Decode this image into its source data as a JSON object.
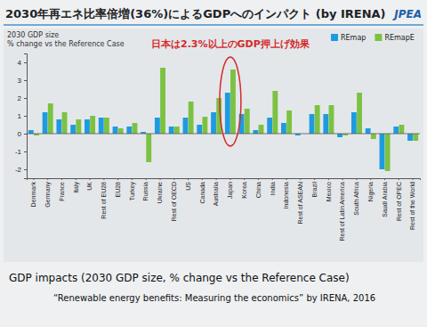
{
  "chart_data": {
    "type": "bar",
    "title": "2030年再エネ比率倍増(36%)によるGDPへのインパクト (by IRENA)",
    "logo": "JPEA",
    "chart_label": [
      "2030 GDP size",
      "% change vs the Reference Case"
    ],
    "annotation": "日本は2.3%以上のGDP押上げ効果",
    "caption": "GDP impacts (2030 GDP size, % change vs the Reference Case)",
    "source": "“Renewable energy benefits: Measuring the economics” by IRENA, 2016",
    "categories": [
      "Denmark",
      "Germany",
      "France",
      "Italy",
      "UK",
      "Rest of EU28",
      "EU28",
      "Turkey",
      "Russia",
      "Ukraine",
      "Rest of OECD",
      "US",
      "Canada",
      "Australia",
      "Japan",
      "Korea",
      "China",
      "India",
      "Indonesia",
      "Rest of ASEAN",
      "Brazil",
      "Mexico",
      "Rest of Latin America",
      "South Africa",
      "Nigeria",
      "Saudi Arabia",
      "Rest of OPEC",
      "Rest of the World"
    ],
    "series": [
      {
        "name": "REmap",
        "color": "#1e9be0",
        "values": [
          0.2,
          1.2,
          0.8,
          0.5,
          0.8,
          0.9,
          0.4,
          0.4,
          0.1,
          0.9,
          0.4,
          0.9,
          0.5,
          1.2,
          2.3,
          1.1,
          0.2,
          0.9,
          0.6,
          -0.1,
          1.1,
          1.1,
          -0.2,
          1.2,
          0.3,
          -2.0,
          0.4,
          -0.4
        ]
      },
      {
        "name": "REmapE",
        "color": "#7cc242",
        "values": [
          -0.1,
          1.7,
          1.2,
          0.8,
          1.0,
          0.9,
          0.3,
          0.6,
          -1.6,
          3.7,
          0.4,
          1.8,
          0.95,
          2.0,
          3.6,
          1.4,
          0.5,
          2.4,
          1.3,
          0.0,
          1.6,
          1.6,
          -0.1,
          2.3,
          -0.3,
          -2.1,
          0.5,
          -0.4
        ]
      }
    ],
    "ylim": [
      -2.5,
      4.5
    ],
    "yticks": [
      -2,
      -1,
      0,
      1,
      2,
      3,
      4
    ],
    "grid": false,
    "legend": "top-right"
  }
}
